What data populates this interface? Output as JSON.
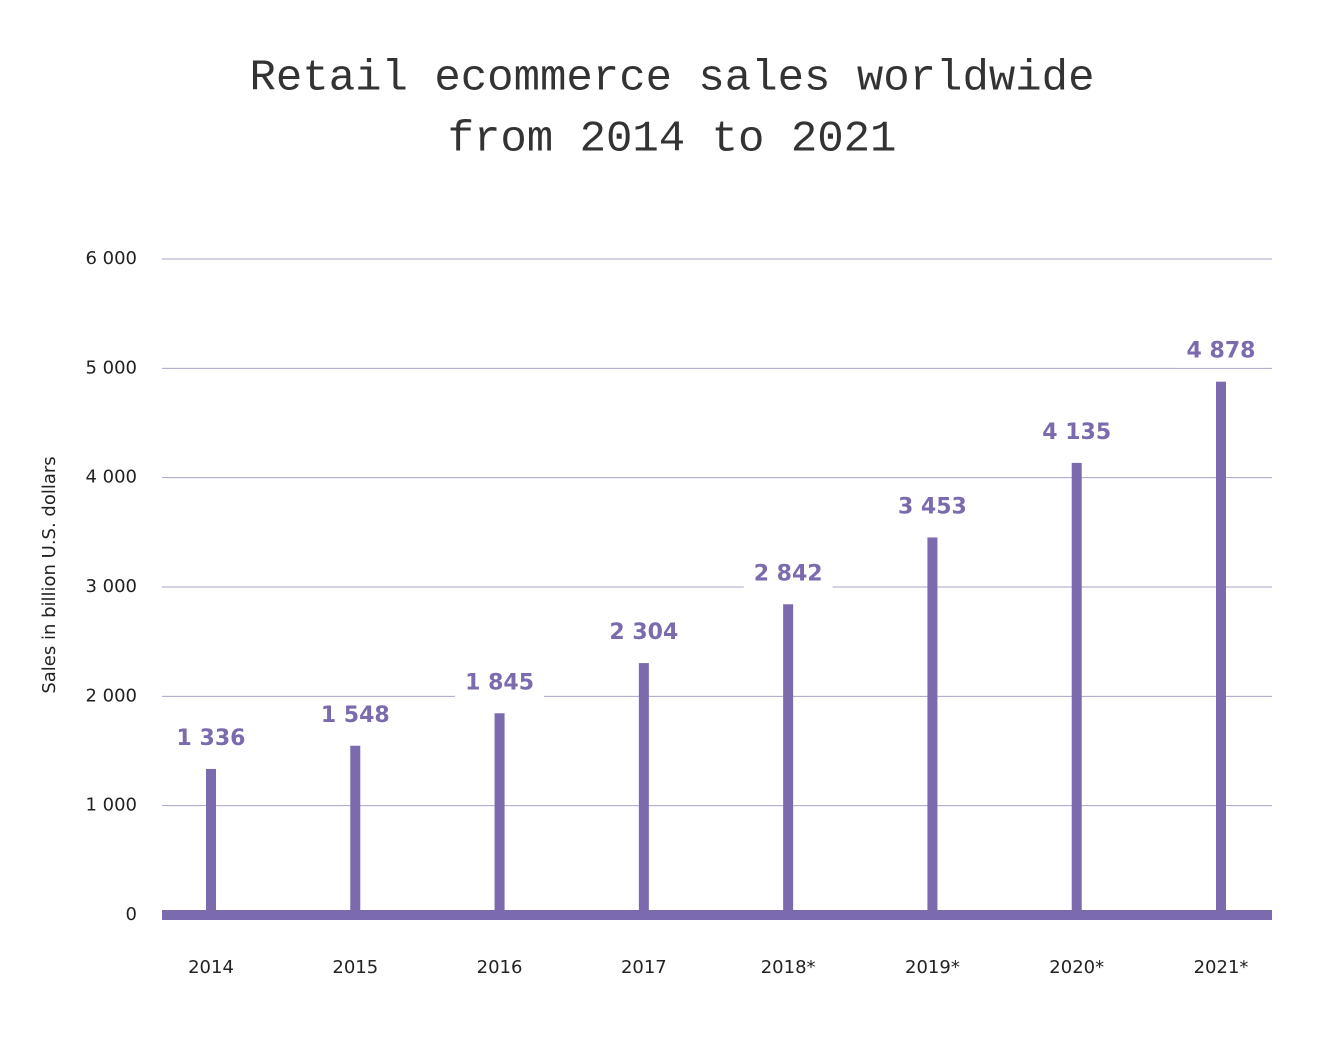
{
  "chart_data": {
    "type": "bar",
    "title": [
      "Retail ecommerce sales worldwide",
      "from 2014 to 2021"
    ],
    "y_label": "Sales in billion U.S. dollars",
    "categories": [
      "2014",
      "2015",
      "2016",
      "2017",
      "2018*",
      "2019*",
      "2020*",
      "2021*"
    ],
    "values": [
      1336,
      1548,
      1845,
      2304,
      2842,
      3453,
      4135,
      4878
    ],
    "value_labels": [
      "1 336",
      "1 548",
      "1 845",
      "2 304",
      "2 842",
      "3 453",
      "4 135",
      "4 878"
    ],
    "color": "#7b6aad",
    "ylim": [
      0,
      6000
    ],
    "yticks": [
      0,
      {
        "value": 1000,
        "label": "1 000"
      },
      {
        "value": 2000,
        "label": "2 000"
      },
      {
        "value": 3000,
        "label": "3 000"
      },
      {
        "value": 4000,
        "label": "4 000"
      },
      {
        "value": 5000,
        "label": "5 000"
      },
      {
        "value": 6000,
        "label": "6 000"
      }
    ],
    "grid": true
  }
}
